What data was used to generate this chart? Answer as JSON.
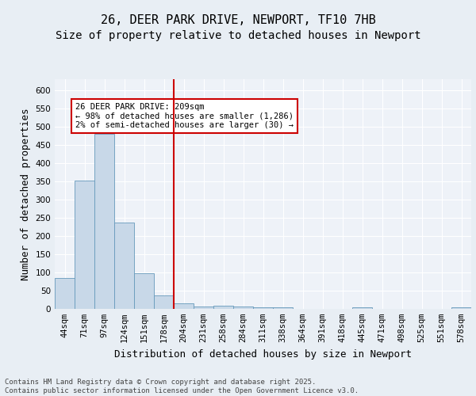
{
  "title_line1": "26, DEER PARK DRIVE, NEWPORT, TF10 7HB",
  "title_line2": "Size of property relative to detached houses in Newport",
  "xlabel": "Distribution of detached houses by size in Newport",
  "ylabel": "Number of detached properties",
  "footnote": "Contains HM Land Registry data © Crown copyright and database right 2025.\nContains public sector information licensed under the Open Government Licence v3.0.",
  "bar_labels": [
    "44sqm",
    "71sqm",
    "97sqm",
    "124sqm",
    "151sqm",
    "178sqm",
    "204sqm",
    "231sqm",
    "258sqm",
    "284sqm",
    "311sqm",
    "338sqm",
    "364sqm",
    "391sqm",
    "418sqm",
    "445sqm",
    "471sqm",
    "498sqm",
    "525sqm",
    "551sqm",
    "578sqm"
  ],
  "bar_values": [
    85,
    352,
    480,
    237,
    97,
    37,
    16,
    7,
    8,
    7,
    4,
    4,
    0,
    0,
    0,
    5,
    0,
    0,
    0,
    0,
    5
  ],
  "bar_color": "#c8d8e8",
  "bar_edgecolor": "#6699bb",
  "annotation_box_text": "26 DEER PARK DRIVE: 209sqm\n← 98% of detached houses are smaller (1,286)\n2% of semi-detached houses are larger (30) →",
  "vline_color": "#cc0000",
  "vline_x": 5.5,
  "ylim": [
    0,
    630
  ],
  "yticks": [
    0,
    50,
    100,
    150,
    200,
    250,
    300,
    350,
    400,
    450,
    500,
    550,
    600
  ],
  "bg_color": "#e8eef4",
  "plot_bg_color": "#eef2f8",
  "title_fontsize": 11,
  "subtitle_fontsize": 10,
  "axis_label_fontsize": 9,
  "tick_fontsize": 7.5,
  "footnote_fontsize": 6.5
}
